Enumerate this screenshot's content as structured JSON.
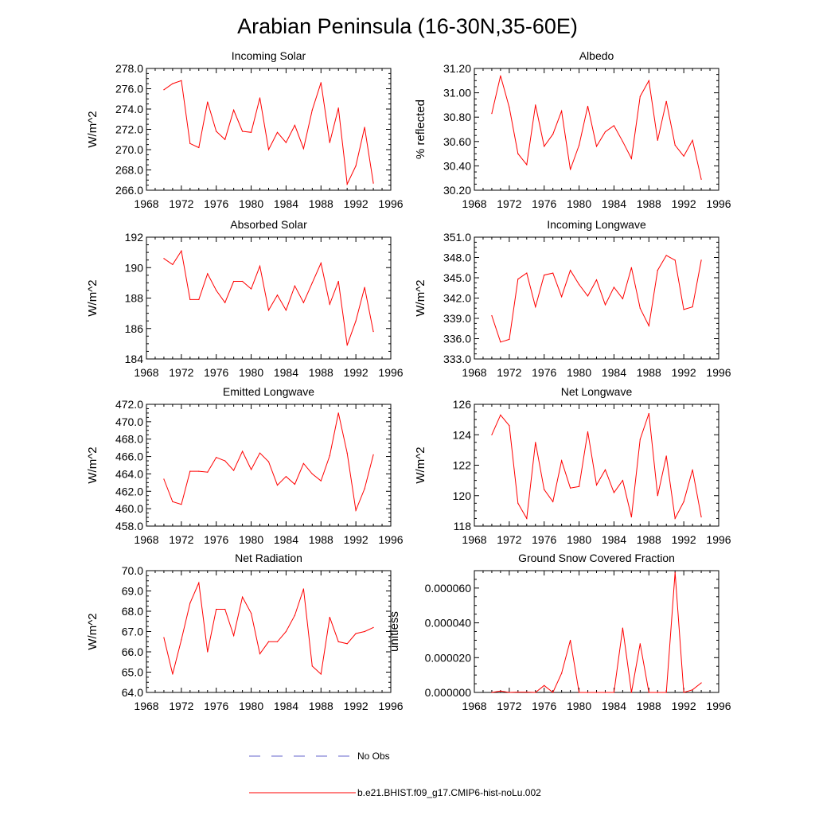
{
  "title": "Arabian Peninsula (16-30N,35-60E)",
  "legend": [
    {
      "label": "No Obs",
      "color": "#6666cc",
      "style": "dashed"
    },
    {
      "label": "b.e21.BHIST.f09_g17.CMIP6-hist-noLu.002",
      "color": "#ff0000",
      "style": "solid"
    }
  ],
  "chart_data": [
    {
      "type": "line",
      "title": "Incoming Solar",
      "ylabel": "W/m^2",
      "xlim": [
        1968,
        1996
      ],
      "ylim": [
        266.0,
        278.0
      ],
      "xticks": [
        1968,
        1972,
        1976,
        1980,
        1984,
        1988,
        1992,
        1996
      ],
      "yticks": [
        "266.0",
        "268.0",
        "270.0",
        "272.0",
        "274.0",
        "276.0",
        "278.0"
      ],
      "x": [
        1970,
        1971,
        1972,
        1973,
        1974,
        1975,
        1976,
        1977,
        1978,
        1979,
        1980,
        1981,
        1982,
        1983,
        1984,
        1985,
        1986,
        1987,
        1988,
        1989,
        1990,
        1991,
        1992,
        1993,
        1994
      ],
      "series": [
        {
          "color": "#ff0000",
          "values": [
            275.9,
            276.5,
            276.8,
            270.6,
            270.2,
            274.7,
            271.8,
            271.0,
            273.9,
            271.8,
            271.7,
            275.1,
            270.0,
            271.7,
            270.7,
            272.4,
            270.1,
            273.9,
            276.6,
            270.7,
            274.1,
            266.6,
            268.4,
            272.2,
            266.7
          ]
        }
      ]
    },
    {
      "type": "line",
      "title": "Albedo",
      "ylabel": "% reflected",
      "xlim": [
        1968,
        1996
      ],
      "ylim": [
        30.2,
        31.2
      ],
      "xticks": [
        1968,
        1972,
        1976,
        1980,
        1984,
        1988,
        1992,
        1996
      ],
      "yticks": [
        "30.20",
        "30.40",
        "30.60",
        "30.80",
        "31.00",
        "31.20"
      ],
      "x": [
        1970,
        1971,
        1972,
        1973,
        1974,
        1975,
        1976,
        1977,
        1978,
        1979,
        1980,
        1981,
        1982,
        1983,
        1984,
        1985,
        1986,
        1987,
        1988,
        1989,
        1990,
        1991,
        1992,
        1993,
        1994
      ],
      "series": [
        {
          "color": "#ff0000",
          "values": [
            30.83,
            31.14,
            30.88,
            30.5,
            30.41,
            30.9,
            30.56,
            30.66,
            30.85,
            30.37,
            30.57,
            30.89,
            30.56,
            30.68,
            30.73,
            30.6,
            30.46,
            30.97,
            31.1,
            30.61,
            30.93,
            30.57,
            30.48,
            30.61,
            30.29
          ]
        }
      ]
    },
    {
      "type": "line",
      "title": "Absorbed Solar",
      "ylabel": "W/m^2",
      "xlim": [
        1968,
        1996
      ],
      "ylim": [
        184,
        192
      ],
      "xticks": [
        1968,
        1972,
        1976,
        1980,
        1984,
        1988,
        1992,
        1996
      ],
      "yticks": [
        "184",
        "186",
        "188",
        "190",
        "192"
      ],
      "x": [
        1970,
        1971,
        1972,
        1973,
        1974,
        1975,
        1976,
        1977,
        1978,
        1979,
        1980,
        1981,
        1982,
        1983,
        1984,
        1985,
        1986,
        1987,
        1988,
        1989,
        1990,
        1991,
        1992,
        1993,
        1994
      ],
      "series": [
        {
          "color": "#ff0000",
          "values": [
            190.6,
            190.2,
            191.1,
            187.9,
            187.9,
            189.6,
            188.5,
            187.7,
            189.1,
            189.1,
            188.6,
            190.1,
            187.2,
            188.2,
            187.2,
            188.8,
            187.7,
            189.0,
            190.3,
            187.6,
            189.1,
            184.9,
            186.5,
            188.7,
            185.8
          ]
        }
      ]
    },
    {
      "type": "line",
      "title": "Incoming Longwave",
      "ylabel": "W/m^2",
      "xlim": [
        1968,
        1996
      ],
      "ylim": [
        333.0,
        351.0
      ],
      "xticks": [
        1968,
        1972,
        1976,
        1980,
        1984,
        1988,
        1992,
        1996
      ],
      "yticks": [
        "333.0",
        "336.0",
        "339.0",
        "342.0",
        "345.0",
        "348.0",
        "351.0"
      ],
      "x": [
        1970,
        1971,
        1972,
        1973,
        1974,
        1975,
        1976,
        1977,
        1978,
        1979,
        1980,
        1981,
        1982,
        1983,
        1984,
        1985,
        1986,
        1987,
        1988,
        1989,
        1990,
        1991,
        1992,
        1993,
        1994
      ],
      "series": [
        {
          "color": "#ff0000",
          "values": [
            339.4,
            335.5,
            335.9,
            344.8,
            345.7,
            340.7,
            345.4,
            345.7,
            342.2,
            346.1,
            344.0,
            342.3,
            344.7,
            341.0,
            343.6,
            341.9,
            346.5,
            340.5,
            337.9,
            346.1,
            348.3,
            347.6,
            340.3,
            340.7,
            347.6
          ]
        }
      ]
    },
    {
      "type": "line",
      "title": "Emitted Longwave",
      "ylabel": "W/m^2",
      "xlim": [
        1968,
        1996
      ],
      "ylim": [
        458.0,
        472.0
      ],
      "xticks": [
        1968,
        1972,
        1976,
        1980,
        1984,
        1988,
        1992,
        1996
      ],
      "yticks": [
        "458.0",
        "460.0",
        "462.0",
        "464.0",
        "466.0",
        "468.0",
        "470.0",
        "472.0"
      ],
      "x": [
        1970,
        1971,
        1972,
        1973,
        1974,
        1975,
        1976,
        1977,
        1978,
        1979,
        1980,
        1981,
        1982,
        1983,
        1984,
        1985,
        1986,
        1987,
        1988,
        1989,
        1990,
        1991,
        1992,
        1993,
        1994
      ],
      "series": [
        {
          "color": "#ff0000",
          "values": [
            463.4,
            460.8,
            460.5,
            464.3,
            464.3,
            464.2,
            465.9,
            465.5,
            464.4,
            466.6,
            464.5,
            466.4,
            465.4,
            462.7,
            463.7,
            462.8,
            465.2,
            464.0,
            463.2,
            466.1,
            471.0,
            466.4,
            459.8,
            462.3,
            466.2
          ]
        }
      ]
    },
    {
      "type": "line",
      "title": "Net Longwave",
      "ylabel": "W/m^2",
      "xlim": [
        1968,
        1996
      ],
      "ylim": [
        118,
        126
      ],
      "xticks": [
        1968,
        1972,
        1976,
        1980,
        1984,
        1988,
        1992,
        1996
      ],
      "yticks": [
        "118",
        "120",
        "122",
        "124",
        "126"
      ],
      "x": [
        1970,
        1971,
        1972,
        1973,
        1974,
        1975,
        1976,
        1977,
        1978,
        1979,
        1980,
        1981,
        1982,
        1983,
        1984,
        1985,
        1986,
        1987,
        1988,
        1989,
        1990,
        1991,
        1992,
        1993,
        1994
      ],
      "series": [
        {
          "color": "#ff0000",
          "values": [
            124.0,
            125.3,
            124.6,
            119.5,
            118.5,
            123.5,
            120.4,
            119.6,
            122.3,
            120.5,
            120.6,
            124.2,
            120.7,
            121.7,
            120.2,
            121.0,
            118.6,
            123.7,
            125.4,
            120.0,
            122.6,
            118.5,
            119.6,
            121.7,
            118.6
          ]
        }
      ]
    },
    {
      "type": "line",
      "title": "Net Radiation",
      "ylabel": "W/m^2",
      "xlim": [
        1968,
        1996
      ],
      "ylim": [
        64.0,
        70.0
      ],
      "xticks": [
        1968,
        1972,
        1976,
        1980,
        1984,
        1988,
        1992,
        1996
      ],
      "yticks": [
        "64.0",
        "65.0",
        "66.0",
        "67.0",
        "68.0",
        "69.0",
        "70.0"
      ],
      "x": [
        1970,
        1971,
        1972,
        1973,
        1974,
        1975,
        1976,
        1977,
        1978,
        1979,
        1980,
        1981,
        1982,
        1983,
        1984,
        1985,
        1986,
        1987,
        1988,
        1989,
        1990,
        1991,
        1992,
        1993,
        1994
      ],
      "series": [
        {
          "color": "#ff0000",
          "values": [
            66.7,
            64.9,
            66.6,
            68.4,
            69.4,
            66.0,
            68.1,
            68.1,
            66.8,
            68.7,
            67.9,
            65.9,
            66.5,
            66.5,
            67.0,
            67.8,
            69.1,
            65.3,
            64.9,
            67.7,
            66.5,
            66.4,
            66.9,
            67.0,
            67.2
          ]
        }
      ]
    },
    {
      "type": "line",
      "title": "Ground Snow Covered Fraction",
      "ylabel": "unitless",
      "xlim": [
        1968,
        1996
      ],
      "ylim": [
        0.0,
        7e-05
      ],
      "xticks": [
        1968,
        1972,
        1976,
        1980,
        1984,
        1988,
        1992,
        1996
      ],
      "yticks": [
        "0.000000",
        "0.000020",
        "0.000040",
        "0.000060"
      ],
      "x": [
        1970,
        1971,
        1972,
        1973,
        1974,
        1975,
        1976,
        1977,
        1978,
        1979,
        1980,
        1981,
        1982,
        1983,
        1984,
        1985,
        1986,
        1987,
        1988,
        1989,
        1990,
        1991,
        1992,
        1993,
        1994
      ],
      "series": [
        {
          "color": "#ff0000",
          "values": [
            0.0,
            8e-07,
            0.0,
            2e-07,
            2e-07,
            0.0,
            4e-06,
            0.0,
            1.1e-05,
            3e-05,
            0.0,
            0.0,
            0.0,
            0.0,
            0.0,
            3.7e-05,
            0.0,
            2.8e-05,
            0.0,
            0.0,
            0.0,
            6.9e-05,
            0.0,
            1.5e-06,
            5.5e-06
          ]
        }
      ]
    }
  ]
}
